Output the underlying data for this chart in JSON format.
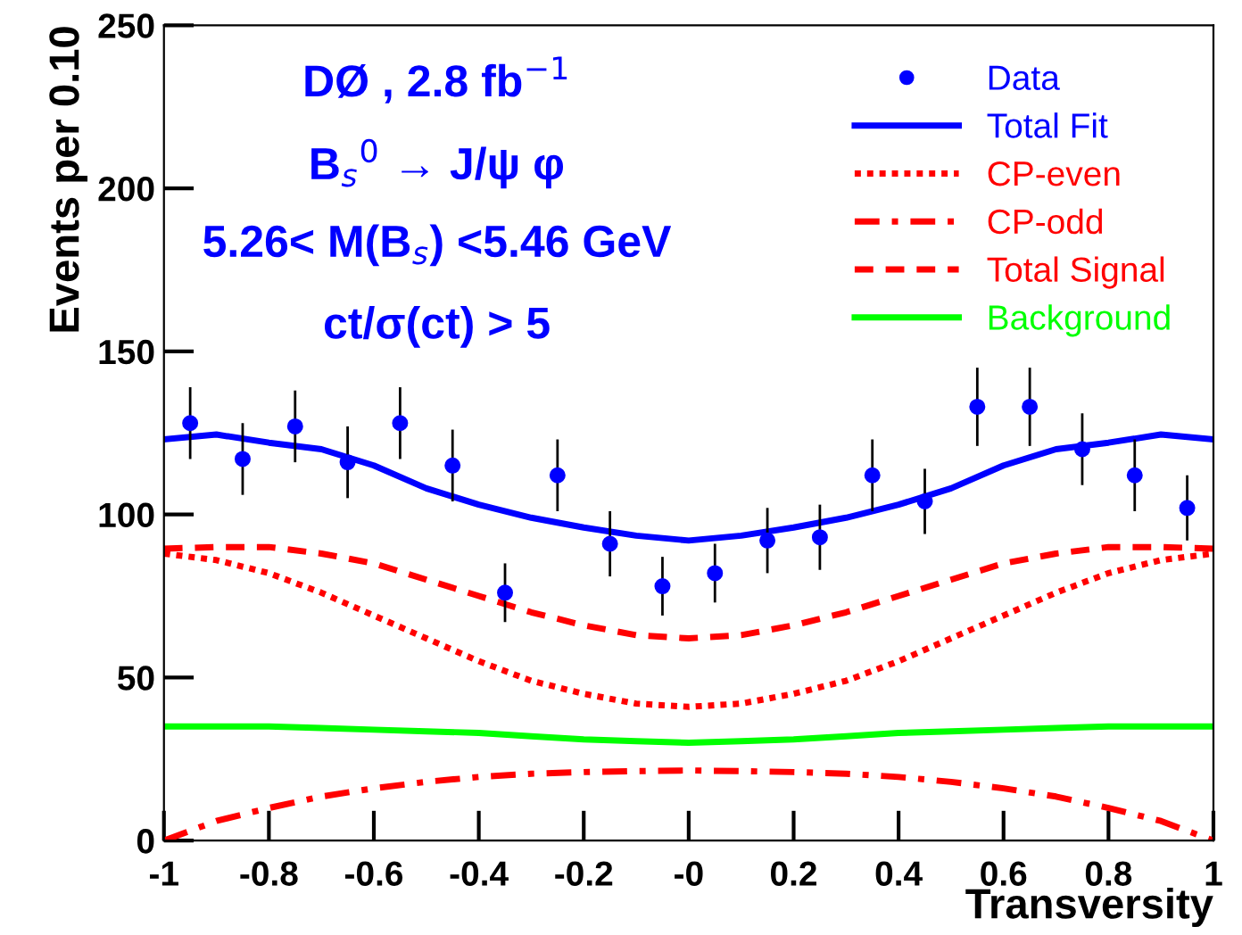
{
  "chart_data": {
    "type": "line",
    "xlabel": "Transversity",
    "ylabel": "Events per 0.10",
    "xlim": [
      -1,
      1
    ],
    "ylim": [
      0,
      250
    ],
    "xticks": [
      -1,
      -0.8,
      -0.6,
      -0.4,
      -0.2,
      {
        "value": 0,
        "label": "-0"
      },
      0.2,
      0.4,
      0.6,
      0.8,
      1
    ],
    "yticks": [
      0,
      50,
      100,
      150,
      200,
      250
    ],
    "grid": false,
    "legend": "top right",
    "annotations": [
      "DØ , 2.8 fb$^{−1}$",
      "B$_{s}$$^{0}$ → J/ψ φ",
      "5.26< M(B$_{s}$) <5.46 GeV",
      "ct/σ(ct) > 5"
    ],
    "series": [
      {
        "name": "Data",
        "type": "scatter",
        "marker": "circle",
        "color": "#0000ff",
        "x": [
          -0.95,
          -0.85,
          -0.75,
          -0.65,
          -0.55,
          -0.45,
          -0.35,
          -0.25,
          -0.15,
          -0.05,
          0.05,
          0.15,
          0.25,
          0.35,
          0.45,
          0.55,
          0.65,
          0.75,
          0.85,
          0.95
        ],
        "values": [
          128,
          117,
          127,
          116,
          128,
          115,
          76,
          112,
          91,
          78,
          82,
          92,
          93,
          112,
          104,
          133,
          133,
          120,
          112,
          102
        ],
        "errors": [
          11,
          11,
          11,
          11,
          11,
          11,
          9,
          11,
          10,
          9,
          9,
          10,
          10,
          11,
          10,
          12,
          12,
          11,
          11,
          10
        ]
      },
      {
        "name": "Total Fit",
        "line_style": "solid",
        "color": "#0000ff",
        "x": [
          -1,
          -0.9,
          -0.8,
          -0.7,
          -0.6,
          -0.5,
          -0.4,
          -0.3,
          -0.2,
          -0.1,
          0,
          0.1,
          0.2,
          0.3,
          0.4,
          0.5,
          0.6,
          0.7,
          0.8,
          0.9,
          1
        ],
        "values": [
          123,
          124.5,
          122,
          120,
          115,
          108,
          103,
          99,
          96,
          93.5,
          92,
          93.5,
          96,
          99,
          103,
          108,
          115,
          120,
          122,
          124.5,
          123
        ]
      },
      {
        "name": "CP-even",
        "line_style": "dotted",
        "color": "#ff0000",
        "x": [
          -1,
          -0.9,
          -0.8,
          -0.7,
          -0.6,
          -0.5,
          -0.4,
          -0.3,
          -0.2,
          -0.1,
          0,
          0.1,
          0.2,
          0.3,
          0.4,
          0.5,
          0.6,
          0.7,
          0.8,
          0.9,
          1
        ],
        "values": [
          88,
          86,
          82,
          76,
          69,
          62,
          55,
          49,
          45,
          42,
          41,
          42,
          45,
          49,
          55,
          62,
          69,
          76,
          82,
          86,
          88
        ]
      },
      {
        "name": "CP-odd",
        "line_style": "dashdot",
        "color": "#ff0000",
        "x": [
          -1,
          -0.9,
          -0.8,
          -0.7,
          -0.6,
          -0.5,
          -0.4,
          -0.3,
          -0.2,
          -0.1,
          0,
          0.1,
          0.2,
          0.3,
          0.4,
          0.5,
          0.6,
          0.7,
          0.8,
          0.9,
          1
        ],
        "values": [
          0,
          6,
          10,
          13.5,
          16,
          18,
          19.5,
          20.5,
          21,
          21.3,
          21.5,
          21.3,
          21,
          20.5,
          19.5,
          18,
          16,
          13.5,
          10,
          6,
          0
        ]
      },
      {
        "name": "Total Signal",
        "line_style": "dashed",
        "color": "#ff0000",
        "x": [
          -1,
          -0.9,
          -0.8,
          -0.7,
          -0.6,
          -0.5,
          -0.4,
          -0.3,
          -0.2,
          -0.1,
          0,
          0.1,
          0.2,
          0.3,
          0.4,
          0.5,
          0.6,
          0.7,
          0.8,
          0.9,
          1
        ],
        "values": [
          89.5,
          90,
          90,
          88,
          85,
          80,
          75,
          70,
          66,
          63,
          62,
          63,
          66,
          70,
          75,
          80,
          85,
          88,
          90,
          90,
          89.5
        ]
      },
      {
        "name": "Background",
        "line_style": "solid",
        "color": "#00ff00",
        "x": [
          -1,
          -0.9,
          -0.8,
          -0.7,
          -0.6,
          -0.5,
          -0.4,
          -0.3,
          -0.2,
          -0.1,
          0,
          0.1,
          0.2,
          0.3,
          0.4,
          0.5,
          0.6,
          0.7,
          0.8,
          0.9,
          1
        ],
        "values": [
          35,
          35,
          35,
          34.5,
          34,
          33.5,
          33,
          32,
          31,
          30.5,
          30,
          30.5,
          31,
          32,
          33,
          33.5,
          34,
          34.5,
          35,
          35,
          35
        ]
      }
    ]
  }
}
